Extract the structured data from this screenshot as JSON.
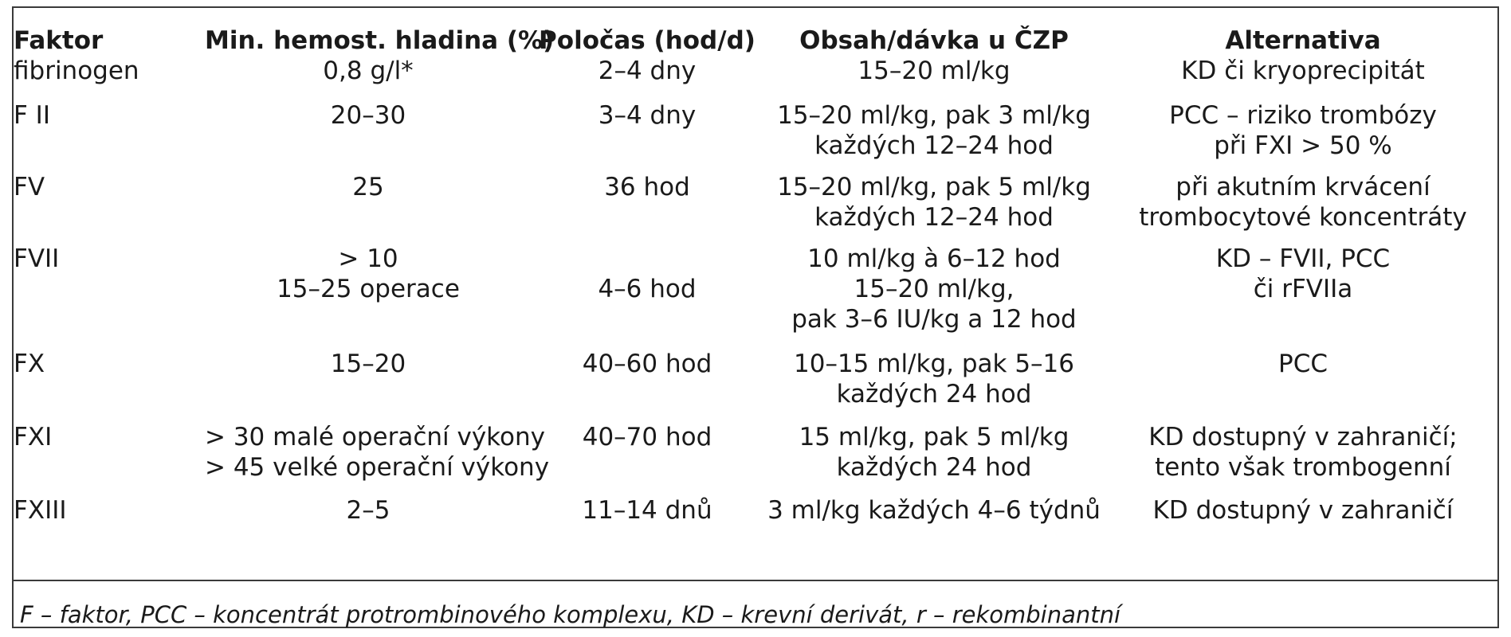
{
  "table": {
    "headers": {
      "faktor": "Faktor",
      "min": "Min. hemost. hladina (%)",
      "polocas": "Poločas (hod/d)",
      "obsah": "Obsah/dávka u ČZP",
      "alt": "Alternativa"
    },
    "rows": [
      {
        "faktor": [
          "fibrinogen"
        ],
        "min": [
          "0,8 g/l*"
        ],
        "polocas": [
          "2–4 dny"
        ],
        "obsah": [
          "15–20 ml/kg"
        ],
        "alt": [
          "KD či kryoprecipitát"
        ]
      },
      {
        "faktor": [
          "F II"
        ],
        "min": [
          "20–30"
        ],
        "polocas": [
          "3–4 dny"
        ],
        "obsah": [
          "15–20 ml/kg, pak 3 ml/kg",
          "každých 12–24 hod"
        ],
        "alt": [
          "PCC – riziko trombózy",
          "při FXI > 50 %"
        ]
      },
      {
        "faktor": [
          "FV"
        ],
        "min": [
          "25"
        ],
        "polocas": [
          "36 hod"
        ],
        "obsah": [
          "15–20 ml/kg, pak 5 ml/kg",
          "každých 12–24 hod"
        ],
        "alt": [
          "při akutním krvácení",
          "trombocytové koncentráty"
        ]
      },
      {
        "faktor": [
          "FVII"
        ],
        "min": [
          "> 10",
          "15–25 operace"
        ],
        "polocas": [
          "",
          "4–6 hod"
        ],
        "obsah": [
          "10 ml/kg à 6–12 hod",
          "15–20 ml/kg,",
          "pak 3–6 IU/kg a 12 hod"
        ],
        "alt": [
          "KD – FVII, PCC",
          "či rFVIIa"
        ]
      },
      {
        "faktor": [
          "FX"
        ],
        "min": [
          "15–20"
        ],
        "polocas": [
          "40–60 hod"
        ],
        "obsah": [
          "10–15 ml/kg, pak 5–16",
          "každých 24 hod"
        ],
        "alt": [
          "PCC"
        ]
      },
      {
        "faktor": [
          "FXI"
        ],
        "min": [
          "> 30 malé operační výkony",
          "> 45 velké operační výkony"
        ],
        "polocas": [
          "40–70 hod"
        ],
        "obsah": [
          "15 ml/kg, pak 5 ml/kg",
          "každých 24 hod"
        ],
        "alt": [
          "KD dostupný v zahraničí;",
          "tento však trombogenní"
        ]
      },
      {
        "faktor": [
          "FXIII"
        ],
        "min": [
          "2–5"
        ],
        "polocas": [
          "11–14 dnů"
        ],
        "obsah": [
          "3 ml/kg každých 4–6 týdnů"
        ],
        "alt": [
          "KD dostupný v zahraničí"
        ]
      }
    ]
  },
  "footnote": "F – faktor, PCC – koncentrát protrombinového komplexu, KD – krevní derivát, r – rekombinantní"
}
